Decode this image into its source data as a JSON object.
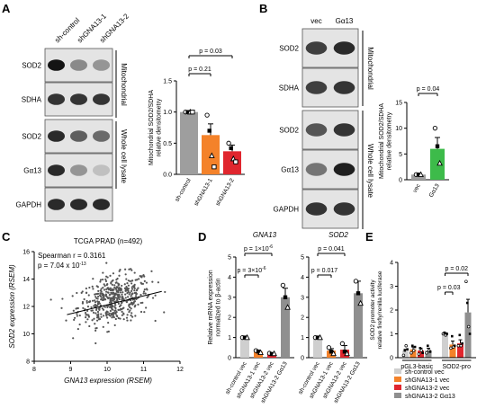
{
  "panels": {
    "A": {
      "letter": "A",
      "lane_labels": [
        "sh-control",
        "shGNA13-1",
        "shGNA13-2"
      ],
      "blots": [
        {
          "label": "SOD2",
          "intensity": [
            1.0,
            0.45,
            0.4
          ]
        },
        {
          "label": "SDHA",
          "intensity": [
            0.85,
            0.85,
            0.85
          ]
        },
        {
          "label": "SOD2",
          "intensity": [
            0.9,
            0.65,
            0.6
          ]
        },
        {
          "label": "Gα13",
          "intensity": [
            0.9,
            0.4,
            0.2
          ]
        },
        {
          "label": "GAPDH",
          "intensity": [
            0.9,
            0.9,
            0.9
          ]
        }
      ],
      "group_labels": [
        "Mitochondrial",
        "Whole cell lysate"
      ]
    },
    "B": {
      "letter": "B",
      "lane_labels": [
        "vec",
        "Gα13"
      ],
      "blots": [
        {
          "label": "SOD2",
          "intensity": [
            0.8,
            0.9
          ]
        },
        {
          "label": "SDHA",
          "intensity": [
            0.8,
            0.85
          ]
        },
        {
          "label": "SOD2",
          "intensity": [
            0.7,
            0.85
          ]
        },
        {
          "label": "Gα13",
          "intensity": [
            0.55,
            0.95
          ]
        },
        {
          "label": "GAPDH",
          "intensity": [
            0.85,
            0.85
          ]
        }
      ],
      "group_labels": [
        "Mitochondrial",
        "Whole cell lysate"
      ]
    },
    "C": {
      "letter": "C"
    },
    "D": {
      "letter": "D"
    },
    "E": {
      "letter": "E"
    }
  },
  "chart_data": [
    {
      "id": "A-bar",
      "type": "bar",
      "ylabel": "Mitochondrial SOD2/SDHA\nrelative densitometry",
      "ylim": [
        0,
        1.5
      ],
      "yticks": [
        "0.0",
        "0.5",
        "1.0",
        "1.5"
      ],
      "categories": [
        "sh-control",
        "shGNA13-1",
        "shGNA13-2"
      ],
      "values": [
        1.0,
        0.63,
        0.37
      ],
      "errors": [
        0.0,
        0.18,
        0.1
      ],
      "colors": [
        "#9e9e9e",
        "#f4822a",
        "#e0262e"
      ],
      "points": [
        [
          1.0,
          1.0,
          1.0,
          1.0
        ],
        [
          0.95,
          0.7,
          0.3,
          0.12
        ],
        [
          0.5,
          0.42,
          0.25,
          0.2
        ]
      ],
      "annotations": [
        {
          "text": "p = 0.03",
          "from": 0,
          "to": 2
        },
        {
          "text": "p = 0.21",
          "from": 0,
          "to": 1
        }
      ]
    },
    {
      "id": "B-bar",
      "type": "bar",
      "ylabel": "Mitochondrial SOD2/SDHA\nrelative densitometry",
      "ylim": [
        0,
        15
      ],
      "yticks": [
        "0",
        "5",
        "10",
        "15"
      ],
      "categories": [
        "vec",
        "Gα13"
      ],
      "values": [
        1.0,
        6.0
      ],
      "errors": [
        0.0,
        2.2
      ],
      "colors": [
        "#9e9e9e",
        "#3dbb4a"
      ],
      "points": [
        [
          1.0,
          1.0,
          1.0
        ],
        [
          10.0,
          6.5,
          3.2
        ]
      ],
      "annotations": [
        {
          "text": "p = 0.04",
          "from": 0,
          "to": 1
        }
      ]
    },
    {
      "id": "C-scatter",
      "type": "scatter",
      "title": "TCGA PRAD (n=492)",
      "xlabel": "GNA13 expression (RSEM)",
      "ylabel": "SOD2 expression (RSEM)",
      "xlim": [
        8,
        12
      ],
      "ylim": [
        8,
        16
      ],
      "xticks": [
        "8",
        "9",
        "10",
        "11",
        "12"
      ],
      "yticks": [
        "8",
        "10",
        "12",
        "14",
        "16"
      ],
      "n_points": 492,
      "mean": [
        10.2,
        12.5
      ],
      "sd": [
        0.5,
        0.9
      ],
      "corr": 0.3161,
      "fit": {
        "x": [
          8.9,
          11.5
        ],
        "y": [
          11.4,
          13.1
        ]
      },
      "annotation_lines": [
        "Spearman r = 0.3161",
        "p = 7.04 x 10",
        "-13"
      ]
    },
    {
      "id": "D-GNA13",
      "type": "bar",
      "title": "GNA13",
      "ylabel": "Relative mRNA expression\nnormalized to β-actin",
      "ylim": [
        0,
        5
      ],
      "yticks": [
        "0",
        "1",
        "2",
        "3",
        "4",
        "5"
      ],
      "categories": [
        "sh-control vec",
        "shGNA13-1 vec",
        "shGNA13-2 vec",
        "shGNA13-2 Gα13"
      ],
      "values": [
        1.0,
        0.3,
        0.2,
        3.0
      ],
      "errors": [
        0.02,
        0.05,
        0.05,
        0.45
      ],
      "colors": [
        "#cfcfcf",
        "#f4822a",
        "#e0262e",
        "#8f8f8f"
      ],
      "points": [
        [
          1.0,
          1.0,
          1.0
        ],
        [
          0.35,
          0.3,
          0.25
        ],
        [
          0.22,
          0.18,
          0.2
        ],
        [
          3.6,
          3.0,
          2.5
        ]
      ],
      "annotations": [
        {
          "text": "p = 1×10",
          "sup": "-6",
          "from": 0,
          "to": 2
        },
        {
          "text": "p = 3×10",
          "sup": "-6",
          "from": 0,
          "to": 1
        }
      ]
    },
    {
      "id": "D-SOD2",
      "type": "bar",
      "title": "SOD2",
      "ylim": [
        0,
        5
      ],
      "yticks": [
        "0",
        "1",
        "2",
        "3",
        "4",
        "5"
      ],
      "categories": [
        "sh-control vec",
        "shGNA13-1 vec",
        "shGNA13-2 vec",
        "shGNA13-2 Gα13"
      ],
      "values": [
        1.0,
        0.35,
        0.4,
        3.2
      ],
      "errors": [
        0.02,
        0.1,
        0.2,
        0.6
      ],
      "colors": [
        "#cfcfcf",
        "#f4822a",
        "#e0262e",
        "#8f8f8f"
      ],
      "points": [
        [
          1.0,
          1.0,
          1.0
        ],
        [
          0.5,
          0.3,
          0.2
        ],
        [
          0.7,
          0.3,
          0.2
        ],
        [
          3.8,
          3.2,
          2.7
        ]
      ],
      "annotations": [
        {
          "text": "p = 0.041",
          "from": 0,
          "to": 2
        },
        {
          "text": "p = 0.017",
          "from": 0,
          "to": 1
        }
      ]
    },
    {
      "id": "E-bar",
      "type": "bar",
      "ylabel": "SOD2 promoter activity\nrelative firefly/renilla luciferase",
      "ylim": [
        0,
        4
      ],
      "yticks": [
        "0",
        "1",
        "2",
        "3",
        "4"
      ],
      "groups": [
        "pGL3-basic",
        "SOD2-pro"
      ],
      "legend": [
        "sh-control vec",
        "shGNA13-1 vec",
        "shGNA13-2 vec",
        "shGNA13-2 Gα13"
      ],
      "values": [
        [
          0.3,
          0.35,
          0.3,
          0.3
        ],
        [
          1.0,
          0.55,
          0.6,
          1.9
        ]
      ],
      "errors": [
        [
          0.05,
          0.1,
          0.1,
          0.1
        ],
        [
          0.05,
          0.15,
          0.15,
          0.55
        ]
      ],
      "colors": [
        "#cfcfcf",
        "#f4822a",
        "#e0262e",
        "#8f8f8f"
      ],
      "points": [
        [
          [
            0.1,
            0.3,
            0.5,
            0.35
          ],
          [
            0.2,
            0.5,
            0.3,
            0.45
          ],
          [
            0.15,
            0.4,
            0.3,
            0.2
          ],
          [
            0.2,
            0.5,
            0.3,
            0.25
          ]
        ],
        [
          [
            1.0,
            1.05,
            0.95,
            1.0
          ],
          [
            0.4,
            0.9,
            0.45,
            0.5
          ],
          [
            0.5,
            0.95,
            0.5,
            0.6
          ],
          [
            3.2,
            2.3,
            1.3,
            1.0
          ]
        ]
      ],
      "annotations": [
        {
          "text": "p = 0.02",
          "group": 1,
          "from": 0,
          "to": 3
        },
        {
          "text": "p = 0.03",
          "group": 1,
          "from": 0,
          "to": 1
        }
      ]
    }
  ]
}
